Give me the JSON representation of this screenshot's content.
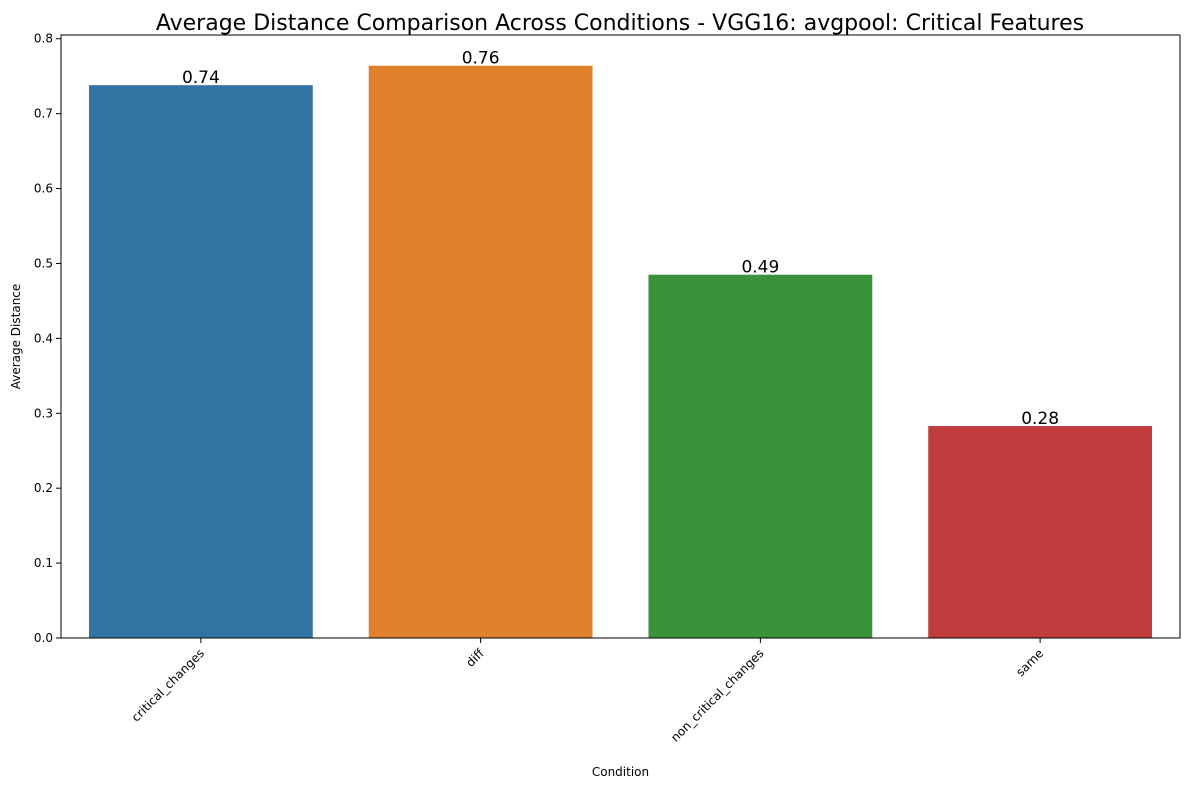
{
  "chart_data": {
    "type": "bar",
    "title": "Average Distance Comparison Across Conditions - VGG16: avgpool: Critical Features",
    "xlabel": "Condition",
    "ylabel": "Average Distance",
    "categories": [
      "critical_changes",
      "diff",
      "non_critical_changes",
      "same"
    ],
    "values": [
      0.738,
      0.764,
      0.485,
      0.283
    ],
    "data_labels": [
      "0.74",
      "0.76",
      "0.49",
      "0.28"
    ],
    "colors": [
      "#3274a1",
      "#e1812c",
      "#3a923a",
      "#c03d3e"
    ],
    "ylim": [
      0,
      0.805
    ],
    "yticks": [
      0.0,
      0.1,
      0.2,
      0.3,
      0.4,
      0.5,
      0.6,
      0.7,
      0.8
    ],
    "ytick_labels": [
      "0.0",
      "0.1",
      "0.2",
      "0.3",
      "0.4",
      "0.5",
      "0.6",
      "0.7",
      "0.8"
    ],
    "grid": false,
    "legend": false
  }
}
